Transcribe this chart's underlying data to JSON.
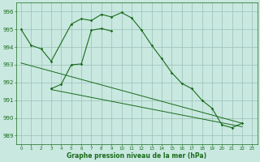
{
  "xlabel": "Graphe pression niveau de la mer (hPa)",
  "background_color": "#c8e8e0",
  "grid_color": "#9bbfb8",
  "line_color": "#1a6b1a",
  "ylim": [
    988.5,
    996.5
  ],
  "xlim": [
    -0.5,
    23.5
  ],
  "yticks": [
    989,
    990,
    991,
    992,
    993,
    994,
    995,
    996
  ],
  "xticks": [
    0,
    1,
    2,
    3,
    4,
    5,
    6,
    7,
    8,
    9,
    10,
    11,
    12,
    13,
    14,
    15,
    16,
    17,
    18,
    19,
    20,
    21,
    22,
    23
  ],
  "line1_x": [
    0,
    1,
    2,
    3,
    5,
    6,
    7,
    8,
    9,
    10,
    11,
    12,
    13,
    14,
    15,
    16,
    17,
    18,
    19,
    20,
    21,
    22
  ],
  "line1_y": [
    995.0,
    994.1,
    993.9,
    993.2,
    995.3,
    995.6,
    995.5,
    995.85,
    995.7,
    995.95,
    995.65,
    994.95,
    994.1,
    993.35,
    992.55,
    991.95,
    991.65,
    991.0,
    990.55,
    989.6,
    989.45,
    989.7
  ],
  "line2_x": [
    3,
    4,
    5,
    6,
    7,
    8,
    9
  ],
  "line2_y": [
    991.65,
    991.9,
    993.0,
    993.05,
    994.95,
    995.05,
    994.9
  ],
  "trend1_x": [
    0,
    22
  ],
  "trend1_y": [
    993.1,
    989.7
  ],
  "trend2_x": [
    3,
    22
  ],
  "trend2_y": [
    991.6,
    989.5
  ],
  "ytick_fontsize": 5.0,
  "xtick_fontsize": 4.0,
  "xlabel_fontsize": 5.5,
  "marker_size": 1.8,
  "line_width": 0.8
}
